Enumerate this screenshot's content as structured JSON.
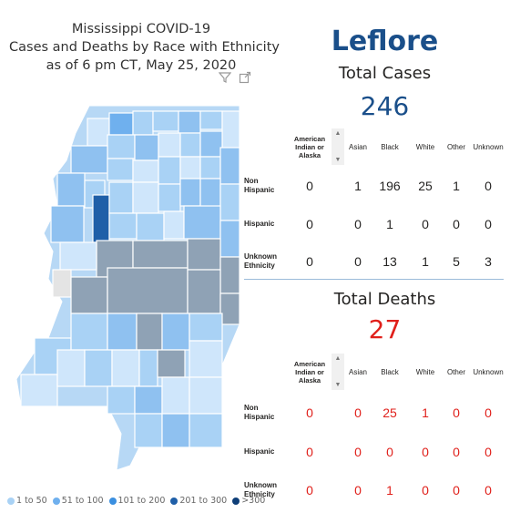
{
  "title": {
    "line1": "Mississippi COVID-19",
    "line2": "Cases and Deaths by Race with Ethnicity",
    "line3": "as of 6 pm CT, May 25, 2020"
  },
  "icons": {
    "filter": "filter-icon",
    "focus": "focus-mode-icon"
  },
  "county": "Leflore",
  "cases": {
    "title": "Total Cases",
    "total": "246",
    "columns": [
      "American Indian or Alaska",
      "Asian",
      "Black",
      "White",
      "Other",
      "Unknown"
    ],
    "rows": [
      {
        "label": "Non Hispanic",
        "values": [
          "0",
          "1",
          "196",
          "25",
          "1",
          "0"
        ]
      },
      {
        "label": "Hispanic",
        "values": [
          "0",
          "0",
          "1",
          "0",
          "0",
          "0"
        ]
      },
      {
        "label": "Unknown Ethnicity",
        "values": [
          "0",
          "0",
          "13",
          "1",
          "5",
          "3"
        ]
      }
    ]
  },
  "deaths": {
    "title": "Total Deaths",
    "total": "27",
    "columns": [
      "American Indian or Alaska",
      "Asian",
      "Black",
      "White",
      "Other",
      "Unknown"
    ],
    "rows": [
      {
        "label": "Non Hispanic",
        "values": [
          "0",
          "0",
          "25",
          "1",
          "0",
          "0"
        ]
      },
      {
        "label": "Hispanic",
        "values": [
          "0",
          "0",
          "0",
          "0",
          "0",
          "0"
        ]
      },
      {
        "label": "Unknown Ethnicity",
        "values": [
          "0",
          "0",
          "1",
          "0",
          "0",
          "0"
        ]
      }
    ]
  },
  "legend": [
    {
      "label": "1 to 50",
      "color": "#a9d2f5"
    },
    {
      "label": "51 to 100",
      "color": "#6fb0ee"
    },
    {
      "label": "101 to 200",
      "color": "#3a8fe0"
    },
    {
      "label": "201 to 300",
      "color": "#1f5fa8"
    },
    {
      "label": ">300",
      "color": "#0f3f78"
    }
  ],
  "colors": {
    "accent": "#1a4f8a",
    "deaths": "#e0201b",
    "selected_county": "#1f5fa8",
    "dimmed_county": "#8fa2b5"
  }
}
